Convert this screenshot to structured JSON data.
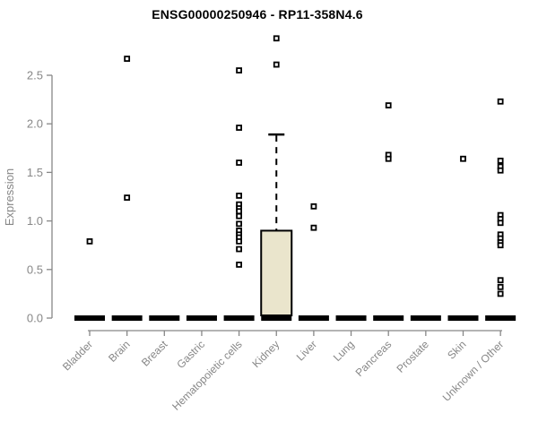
{
  "title": "ENSG00000250946 - RP11-358N4.6",
  "y_axis": {
    "label": "Expression",
    "ticks": [
      0.0,
      0.5,
      1.0,
      1.5,
      2.0,
      2.5
    ],
    "tick_labels": [
      "0.0",
      "0.5",
      "1.0",
      "1.5",
      "2.0",
      "2.5"
    ],
    "range": [
      0.0,
      2.5
    ]
  },
  "colors": {
    "box_fill": "#EAE5CC",
    "box_border": "#000000",
    "marker": "#000000",
    "marker_fill": "#ffffff",
    "axis": "#878787",
    "tick_label": "#878787",
    "title": "#000000",
    "background": "#ffffff"
  },
  "chart_data": {
    "type": "box",
    "title": "ENSG00000250946 - RP11-358N4.6",
    "xlabel": "",
    "ylabel": "Expression",
    "ylim": [
      0.0,
      2.5
    ],
    "yticks": [
      0.0,
      0.5,
      1.0,
      1.5,
      2.0,
      2.5
    ],
    "grid": false,
    "legend": "none",
    "categories": [
      "Bladder",
      "Brain",
      "Breast",
      "Gastric",
      "Hematopoietic cells",
      "Kidney",
      "Liver",
      "Lung",
      "Pancreas",
      "Prostate",
      "Skin",
      "Unknown / Other"
    ],
    "boxes": [
      {
        "category": "Bladder",
        "whisker_low": 0,
        "q1": 0,
        "median": 0,
        "q3": 0,
        "whisker_high": 0,
        "points": [
          0.79
        ]
      },
      {
        "category": "Brain",
        "whisker_low": 0,
        "q1": 0,
        "median": 0,
        "q3": 0,
        "whisker_high": 0,
        "points": [
          2.67,
          1.24
        ]
      },
      {
        "category": "Breast",
        "whisker_low": 0,
        "q1": 0,
        "median": 0,
        "q3": 0,
        "whisker_high": 0,
        "points": []
      },
      {
        "category": "Gastric",
        "whisker_low": 0,
        "q1": 0,
        "median": 0,
        "q3": 0,
        "whisker_high": 0,
        "points": []
      },
      {
        "category": "Hematopoietic cells",
        "whisker_low": 0,
        "q1": 0,
        "median": 0,
        "q3": 0,
        "whisker_high": 0,
        "points": [
          2.55,
          1.96,
          1.6,
          1.26,
          1.17,
          1.13,
          1.1,
          1.05,
          0.97,
          0.9,
          0.86,
          0.83,
          0.79,
          0.71,
          0.55
        ]
      },
      {
        "category": "Kidney",
        "whisker_low": 0,
        "q1": 0,
        "median": 0,
        "q3": 0.9,
        "whisker_high": 1.89,
        "points": [
          2.88,
          2.61
        ]
      },
      {
        "category": "Liver",
        "whisker_low": 0,
        "q1": 0,
        "median": 0,
        "q3": 0,
        "whisker_high": 0,
        "points": [
          1.15,
          0.93
        ]
      },
      {
        "category": "Lung",
        "whisker_low": 0,
        "q1": 0,
        "median": 0,
        "q3": 0,
        "whisker_high": 0,
        "points": []
      },
      {
        "category": "Pancreas",
        "whisker_low": 0,
        "q1": 0,
        "median": 0,
        "q3": 0,
        "whisker_high": 0,
        "points": [
          2.19,
          1.68,
          1.64
        ]
      },
      {
        "category": "Prostate",
        "whisker_low": 0,
        "q1": 0,
        "median": 0,
        "q3": 0,
        "whisker_high": 0,
        "points": []
      },
      {
        "category": "Skin",
        "whisker_low": 0,
        "q1": 0,
        "median": 0,
        "q3": 0,
        "whisker_high": 0,
        "points": [
          1.64
        ]
      },
      {
        "category": "Unknown / Other",
        "whisker_low": 0,
        "q1": 0,
        "median": 0,
        "q3": 0,
        "whisker_high": 0,
        "points": [
          2.23,
          1.62,
          1.56,
          1.52,
          1.06,
          1.02,
          0.98,
          0.86,
          0.82,
          0.78,
          0.75,
          0.39,
          0.32,
          0.25
        ]
      }
    ]
  }
}
